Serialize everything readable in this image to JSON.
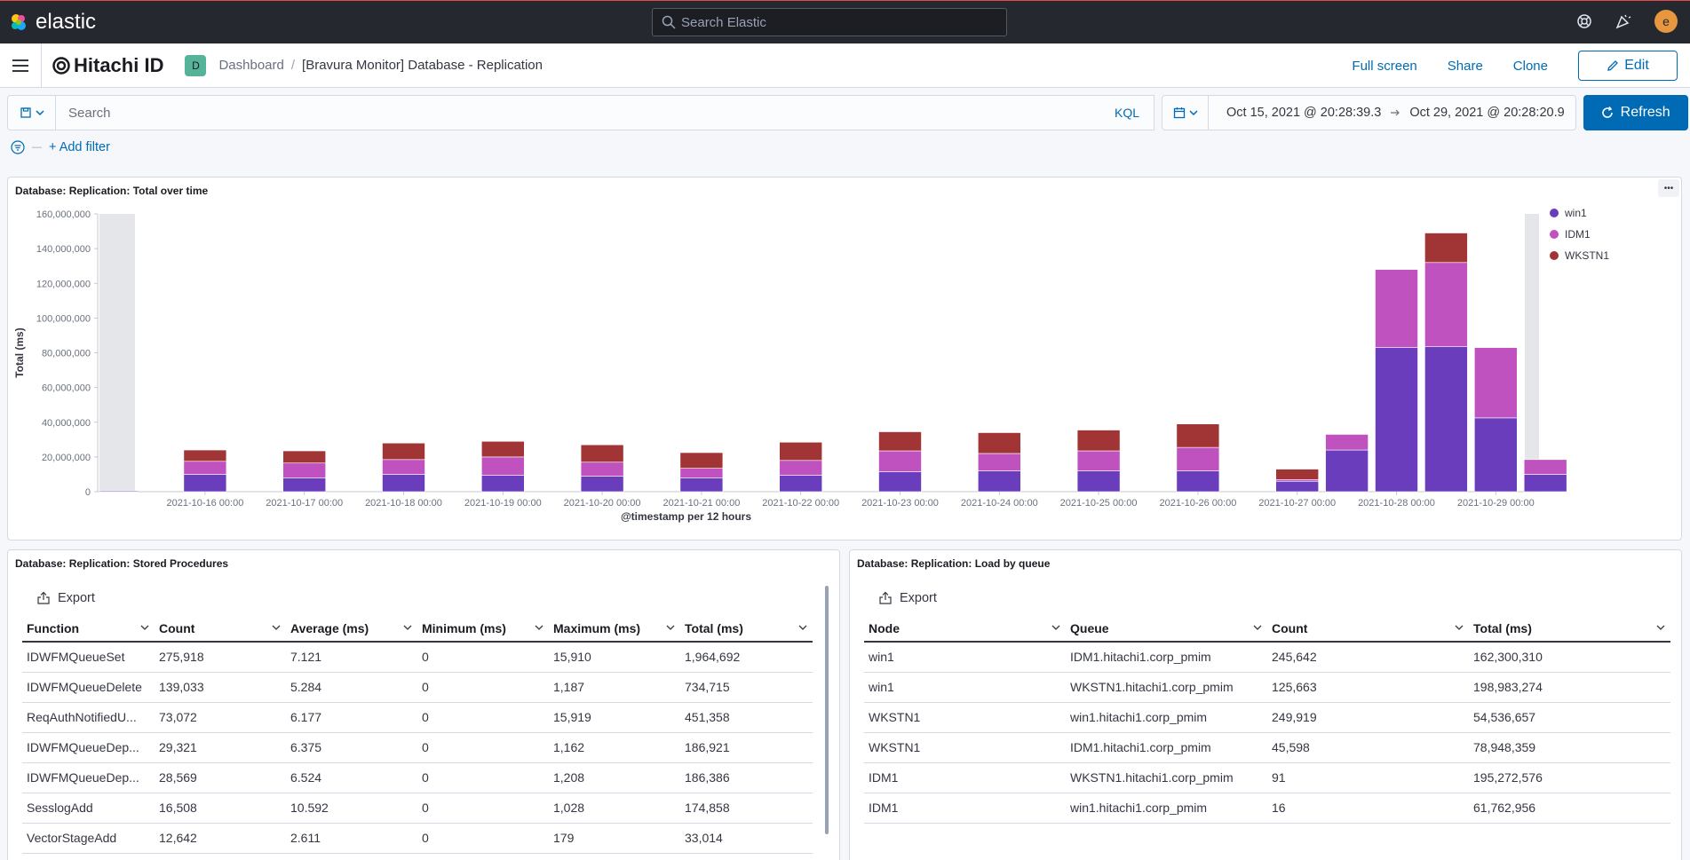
{
  "topbar": {
    "logo_text": "elastic",
    "search_placeholder": "Search Elastic",
    "avatar_letter": "e"
  },
  "header": {
    "brand": "Hitachi ID",
    "space_badge": "D",
    "breadcrumb_root": "Dashboard",
    "breadcrumb_current": "[Bravura Monitor] Database - Replication",
    "links": [
      "Full screen",
      "Share",
      "Clone"
    ],
    "edit_label": "Edit"
  },
  "query": {
    "placeholder": "Search",
    "kql": "KQL",
    "date_from": "Oct 15, 2021 @ 20:28:39.3",
    "date_to": "Oct 29, 2021 @ 20:28:20.9",
    "refresh_label": "Refresh",
    "add_filter": "+ Add filter"
  },
  "colors": {
    "win1": "#6a3dbd",
    "IDM1": "#c052c0",
    "WKSTN1": "#a13434",
    "accent": "#006bb4"
  },
  "chart_panel": {
    "title": "Database: Replication: Total over time"
  },
  "chart_data": {
    "type": "bar",
    "stacked": true,
    "title": "Database: Replication: Total over time",
    "xlabel": "@timestamp per 12 hours",
    "ylabel": "Total (ms)",
    "ylim": [
      0,
      160000000
    ],
    "y_ticks": [
      "0",
      "20,000,000",
      "40,000,000",
      "60,000,000",
      "80,000,000",
      "100,000,000",
      "120,000,000",
      "140,000,000",
      "160,000,000"
    ],
    "x_tick_labels": [
      "2021-10-16 00:00",
      "2021-10-17 00:00",
      "2021-10-18 00:00",
      "2021-10-19 00:00",
      "2021-10-20 00:00",
      "2021-10-21 00:00",
      "2021-10-22 00:00",
      "2021-10-23 00:00",
      "2021-10-24 00:00",
      "2021-10-25 00:00",
      "2021-10-26 00:00",
      "2021-10-27 00:00",
      "2021-10-28 00:00",
      "2021-10-29 00:00"
    ],
    "categories": [
      "2021-10-15 12:00",
      "2021-10-16 00:00",
      "2021-10-16 12:00",
      "2021-10-17 00:00",
      "2021-10-17 12:00",
      "2021-10-18 00:00",
      "2021-10-18 12:00",
      "2021-10-19 00:00",
      "2021-10-19 12:00",
      "2021-10-20 00:00",
      "2021-10-20 12:00",
      "2021-10-21 00:00",
      "2021-10-21 12:00",
      "2021-10-22 00:00",
      "2021-10-22 12:00",
      "2021-10-23 00:00",
      "2021-10-23 12:00",
      "2021-10-24 00:00",
      "2021-10-24 12:00",
      "2021-10-25 00:00",
      "2021-10-25 12:00",
      "2021-10-26 00:00",
      "2021-10-26 12:00",
      "2021-10-27 00:00",
      "2021-10-27 12:00",
      "2021-10-28 00:00",
      "2021-10-28 12:00",
      "2021-10-29 00:00",
      "2021-10-29 12:00"
    ],
    "series": [
      {
        "name": "win1",
        "values": [
          500000,
          10000000,
          0,
          8000000,
          0,
          10000000,
          0,
          9500000,
          0,
          9000000,
          0,
          8000000,
          0,
          9500000,
          0,
          11500000,
          0,
          12000000,
          0,
          12000000,
          0,
          12000000,
          0,
          6000000,
          24000000,
          83000000,
          83500000,
          42500000,
          10000000
        ]
      },
      {
        "name": "IDM1",
        "values": [
          0,
          7500000,
          0,
          8500000,
          0,
          8500000,
          0,
          10500000,
          0,
          8000000,
          0,
          5500000,
          0,
          8500000,
          0,
          12000000,
          0,
          10000000,
          0,
          11500000,
          0,
          13500000,
          0,
          1000000,
          9000000,
          45000000,
          48500000,
          40500000,
          8500000
        ]
      },
      {
        "name": "WKSTN1",
        "values": [
          0,
          6500000,
          0,
          7000000,
          0,
          9500000,
          0,
          9000000,
          0,
          10000000,
          0,
          9000000,
          0,
          10500000,
          0,
          11000000,
          0,
          12000000,
          0,
          12000000,
          0,
          13500000,
          0,
          6000000,
          0,
          0,
          17000000,
          0,
          0
        ]
      }
    ],
    "legend": [
      "win1",
      "IDM1",
      "WKSTN1"
    ],
    "legend_position": "top-right",
    "grid": false
  },
  "stored_procs": {
    "title": "Database: Replication: Stored Procedures",
    "export": "Export",
    "columns": [
      "Function",
      "Count",
      "Average (ms)",
      "Minimum (ms)",
      "Maximum (ms)",
      "Total (ms)"
    ],
    "rows": [
      [
        "IDWFMQueueSet",
        "275,918",
        "7.121",
        "0",
        "15,910",
        "1,964,692"
      ],
      [
        "IDWFMQueueDelete",
        "139,033",
        "5.284",
        "0",
        "1,187",
        "734,715"
      ],
      [
        "ReqAuthNotifiedU...",
        "73,072",
        "6.177",
        "0",
        "15,919",
        "451,358"
      ],
      [
        "IDWFMQueueDep...",
        "29,321",
        "6.375",
        "0",
        "1,162",
        "186,921"
      ],
      [
        "IDWFMQueueDep...",
        "28,569",
        "6.524",
        "0",
        "1,208",
        "186,386"
      ],
      [
        "SesslogAdd",
        "16,508",
        "10.592",
        "0",
        "1,028",
        "174,858"
      ],
      [
        "VectorStageAdd",
        "12,642",
        "2.611",
        "0",
        "179",
        "33,014"
      ]
    ]
  },
  "load_by_queue": {
    "title": "Database: Replication: Load by queue",
    "export": "Export",
    "columns": [
      "Node",
      "Queue",
      "Count",
      "Total (ms)"
    ],
    "rows": [
      [
        "win1",
        "IDM1.hitachi1.corp_pmim",
        "245,642",
        "162,300,310"
      ],
      [
        "win1",
        "WKSTN1.hitachi1.corp_pmim",
        "125,663",
        "198,983,274"
      ],
      [
        "WKSTN1",
        "win1.hitachi1.corp_pmim",
        "249,919",
        "54,536,657"
      ],
      [
        "WKSTN1",
        "IDM1.hitachi1.corp_pmim",
        "45,598",
        "78,948,359"
      ],
      [
        "IDM1",
        "WKSTN1.hitachi1.corp_pmim",
        "91",
        "195,272,576"
      ],
      [
        "IDM1",
        "win1.hitachi1.corp_pmim",
        "16",
        "61,762,956"
      ]
    ]
  }
}
